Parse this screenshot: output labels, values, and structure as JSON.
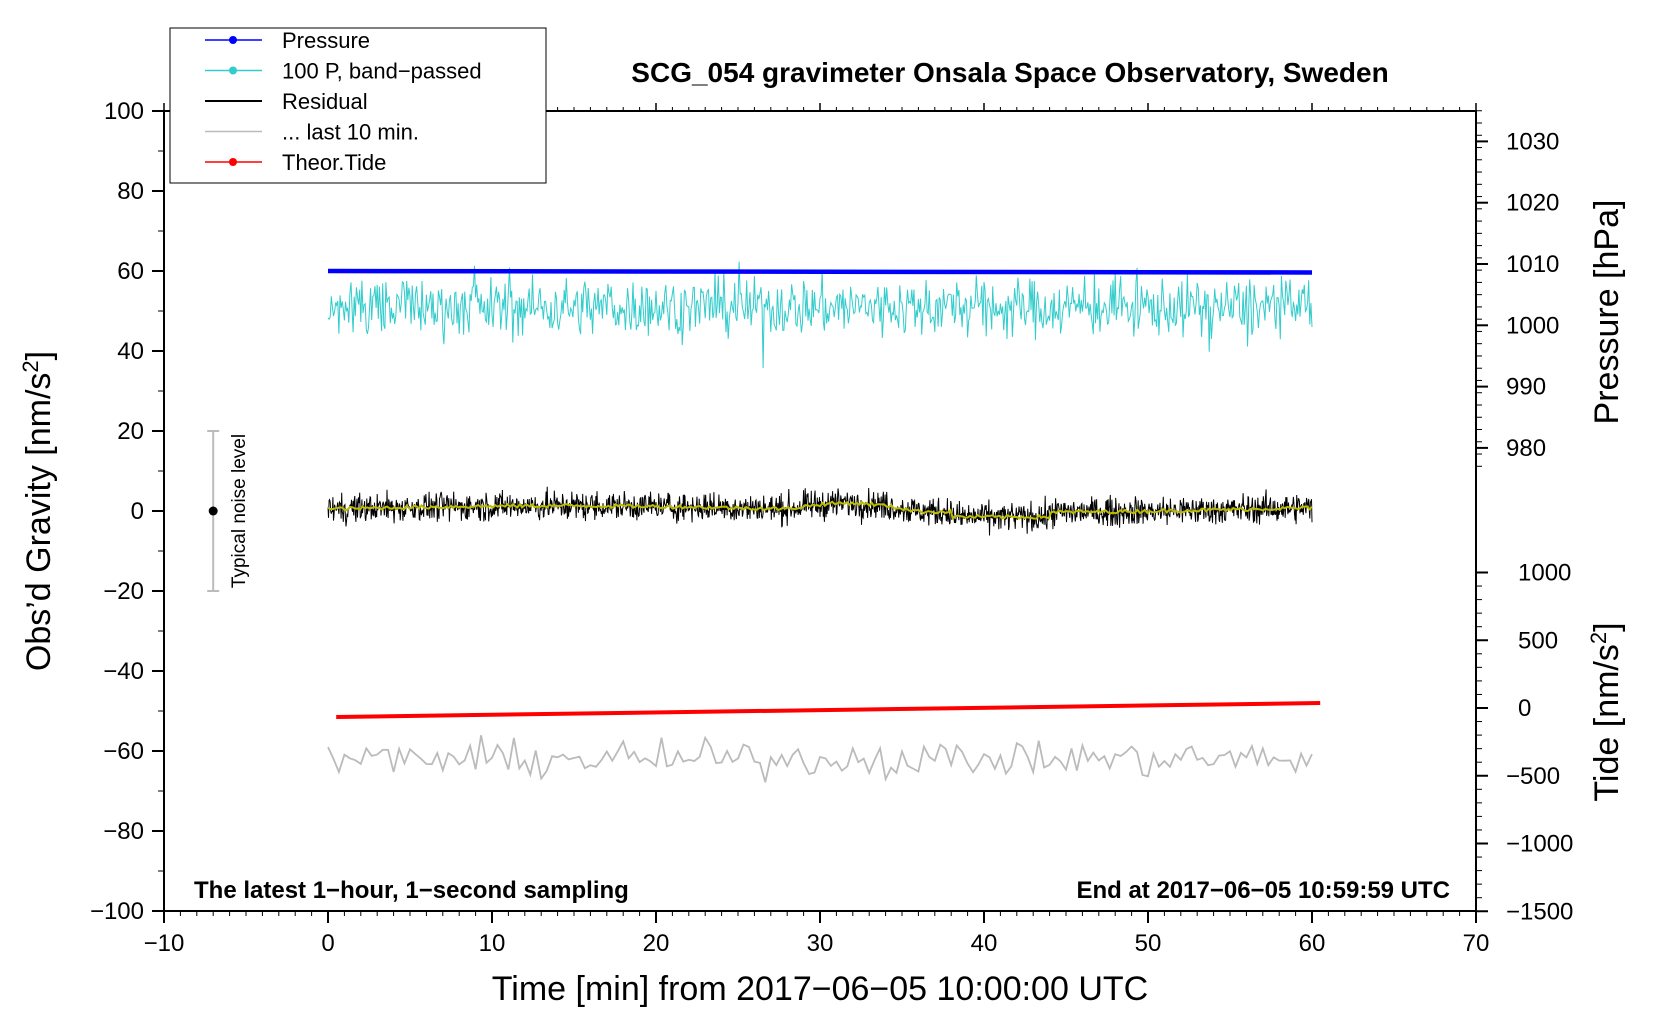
{
  "chart_data": {
    "type": "line",
    "title": "SCG_054 gravimeter Onsala Space Observatory, Sweden",
    "xlabel": "Time [min] from 2017−06−05 10:00:00 UTC",
    "ylabel": "Obs’d Gravity [nm/s²]",
    "ylabel_parts": {
      "main": "Obs’d Gravity [nm/s",
      "sup": "2",
      "end": "]"
    },
    "y2label": "Pressure [hPa]",
    "y3label_parts": {
      "main": "Tide [nm/s",
      "sup": "2",
      "end": "]"
    },
    "xlim": [
      -10,
      70
    ],
    "ylim": [
      -100,
      100
    ],
    "pressure_axis": {
      "ticks": [
        980,
        990,
        1000,
        1010,
        1020,
        1030
      ]
    },
    "tide_axis": {
      "ticks": [
        -1500,
        -1000,
        -500,
        0,
        500,
        1000
      ]
    },
    "x_ticks": [
      -10,
      0,
      10,
      20,
      30,
      40,
      50,
      60,
      70
    ],
    "y_ticks": [
      -100,
      -80,
      -60,
      -40,
      -20,
      0,
      20,
      40,
      60,
      80,
      100
    ],
    "tick_labels": {
      "x": [
        "−10",
        "0",
        "10",
        "20",
        "30",
        "40",
        "50",
        "60",
        "70"
      ],
      "y": [
        "−100",
        "−80",
        "−60",
        "−40",
        "−20",
        "0",
        "20",
        "40",
        "60",
        "80",
        "100"
      ],
      "pressure": [
        "980",
        "990",
        "1000",
        "1010",
        "1020",
        "1030"
      ],
      "tide": [
        "−1500",
        "−1000",
        "−500",
        "0",
        "500",
        "1000"
      ]
    },
    "legend": [
      {
        "name": "Pressure",
        "color": "#0000ff",
        "marker": true
      },
      {
        "name": "100 P, band−passed",
        "color": "#33cccc",
        "marker": true
      },
      {
        "name": "Residual",
        "color": "#000000",
        "marker": false
      },
      {
        "name": "... last 10 min.",
        "color": "#bbbbbb",
        "marker": false
      },
      {
        "name": "Theor.Tide",
        "color": "#ff0000",
        "marker": true
      }
    ],
    "series": [
      {
        "name": "Pressure",
        "color": "#0000ff",
        "x_range": [
          0,
          60
        ],
        "approx_value_hpa": 1009.3,
        "approx_plot_value": 60
      },
      {
        "name": "100 P, band−passed",
        "color": "#33cccc",
        "x_range": [
          0,
          60
        ],
        "center": 51,
        "range": [
          32,
          64
        ]
      },
      {
        "name": "Residual",
        "color": "#000000",
        "x_range": [
          0,
          60
        ],
        "center": 0.5,
        "range": [
          -8,
          9
        ]
      },
      {
        "name": "Residual smoothed",
        "color": "#bbbb00",
        "x_range": [
          0,
          60
        ],
        "center": 0.5,
        "range": [
          -2,
          3
        ]
      },
      {
        "name": "... last 10 min.",
        "color": "#bbbbbb",
        "x_range": [
          0,
          60
        ],
        "center": -62,
        "range": [
          -68,
          -55
        ]
      },
      {
        "name": "Theor.Tide",
        "color": "#ff0000",
        "x_start": 0.5,
        "x_end": 60.5,
        "y_start": -51.5,
        "y_end": -48
      }
    ],
    "noise_bar": {
      "x": -7,
      "center": 0,
      "low": -20,
      "high": 20,
      "label": "Typical noise level"
    },
    "annotations": {
      "left": "The latest 1−hour, 1−second sampling",
      "right": "End at 2017−06−05 10:59:59 UTC"
    }
  }
}
